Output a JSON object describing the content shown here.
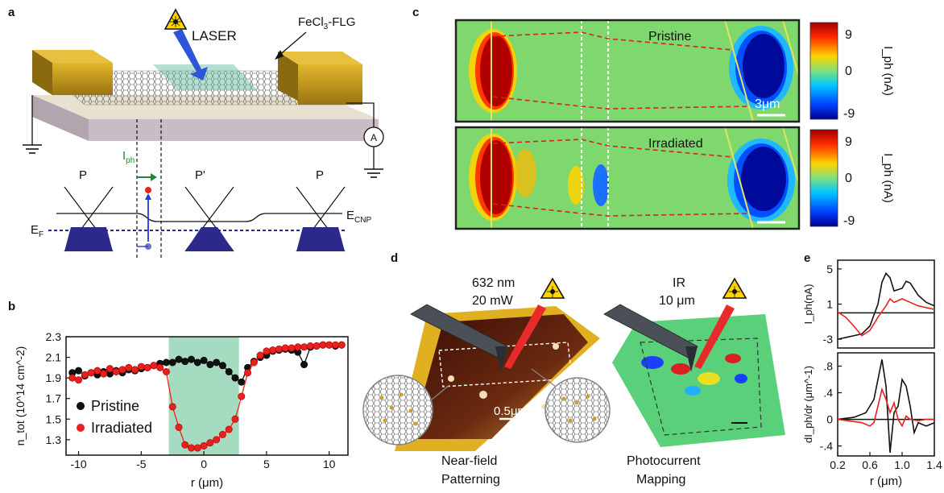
{
  "panel_a": {
    "letter": "a",
    "laser_label": "LASER",
    "material_label": "FeCl",
    "material_sub": "3",
    "material_suffix": "-FLG",
    "meter_label": "A",
    "iph_label": "I",
    "iph_sub": "ph",
    "region_left": "P",
    "region_middle": "P'",
    "region_right": "P",
    "ecnp_label": "E",
    "ecnp_sub": "CNP",
    "ef_label": "E",
    "ef_sub": "F"
  },
  "panel_b": {
    "letter": "b",
    "chart_data": {
      "type": "scatter",
      "xlabel": "r (μm)",
      "ylabel": "n_tot (10^14 cm^-2)",
      "xlim": [
        -11,
        11.5
      ],
      "ylim": [
        1.15,
        2.3
      ],
      "xticks": [
        "-10",
        "-5",
        "0",
        "5",
        "10"
      ],
      "yticks": [
        "2.3",
        "2.1",
        "1.9",
        "1.7",
        "1.5",
        "1.3"
      ],
      "highlight_band": [
        -2.8,
        2.8
      ],
      "legend_position": "bottom-left",
      "series": [
        {
          "name": "Pristine",
          "color": "#111111",
          "x": [
            -10.5,
            -10,
            -9.5,
            -9,
            -8.5,
            -8,
            -7.5,
            -7,
            -6.5,
            -6,
            -5.5,
            -5,
            -4.5,
            -4,
            -3.5,
            -3,
            -2.5,
            -2,
            -1.5,
            -1,
            -0.5,
            0,
            0.5,
            1,
            1.5,
            2,
            2.5,
            3,
            3.5,
            4,
            4.5,
            5,
            5.5,
            6,
            6.5,
            7,
            7.5,
            8,
            8.5,
            9,
            9.5,
            10,
            10.5,
            11
          ],
          "y": [
            1.95,
            1.97,
            1.92,
            1.95,
            1.93,
            1.96,
            1.94,
            1.97,
            1.95,
            1.98,
            1.97,
            1.99,
            2.0,
            2.02,
            2.04,
            2.05,
            2.05,
            2.08,
            2.06,
            2.08,
            2.05,
            2.07,
            2.03,
            2.05,
            2.02,
            1.96,
            1.9,
            1.86,
            2.0,
            2.06,
            2.1,
            2.12,
            2.16,
            2.17,
            2.18,
            2.17,
            2.15,
            2.03,
            2.2,
            2.21,
            2.22,
            2.22,
            2.21,
            2.22
          ]
        },
        {
          "name": "Irradiated",
          "color": "#e8211f",
          "x": [
            -10.5,
            -10,
            -9.5,
            -9,
            -8.5,
            -8,
            -7.5,
            -7,
            -6.5,
            -6,
            -5.5,
            -5,
            -4.5,
            -4,
            -3.5,
            -3,
            -2.5,
            -2,
            -1.5,
            -1,
            -0.5,
            0,
            0.5,
            1,
            1.5,
            2,
            2.5,
            3,
            3.5,
            4,
            4.5,
            5,
            5.5,
            6,
            6.5,
            7,
            7.5,
            8,
            8.5,
            9,
            9.5,
            10,
            10.5,
            11
          ],
          "y": [
            1.9,
            1.88,
            1.93,
            1.95,
            1.97,
            1.94,
            1.99,
            1.96,
            1.98,
            2.0,
            1.98,
            2.01,
            2.0,
            2.02,
            2.0,
            1.96,
            1.62,
            1.42,
            1.25,
            1.22,
            1.22,
            1.24,
            1.27,
            1.3,
            1.35,
            1.4,
            1.5,
            1.72,
            1.95,
            2.05,
            2.12,
            2.16,
            2.17,
            2.18,
            2.19,
            2.19,
            2.2,
            2.2,
            2.21,
            2.21,
            2.22,
            2.22,
            2.22,
            2.22
          ]
        }
      ]
    }
  },
  "panel_c": {
    "letter": "c",
    "top_label": "Pristine",
    "bottom_label": "Irradiated",
    "scale_bar": "3μm",
    "colorbar_ticks": [
      "9",
      "0",
      "-9"
    ],
    "colorbar_label": "I_ph (nA)"
  },
  "panel_d": {
    "letter": "d",
    "left_laser_line1": "632 nm",
    "left_laser_line2": "20 mW",
    "right_laser_line1": "IR",
    "right_laser_line2": "10 μm",
    "scale_bar": "0.5μm",
    "left_caption_line1": "Near-field",
    "left_caption_line2": "Patterning",
    "right_caption_line1": "Photocurrent",
    "right_caption_line2": "Mapping"
  },
  "panel_e": {
    "letter": "e",
    "xlabel": "r (μm)",
    "xticks": [
      "0.2",
      "0.6",
      "1.0",
      "1.4"
    ],
    "chart_data": [
      {
        "type": "line",
        "ylabel": "I_ph(nA)",
        "ylim": [
          -4,
          6
        ],
        "yticks": [
          "5",
          "1",
          "-3"
        ],
        "series": [
          {
            "name": "",
            "color": "#111111",
            "x": [
              0.2,
              0.3,
              0.4,
              0.5,
              0.6,
              0.7,
              0.75,
              0.8,
              0.85,
              0.9,
              1.0,
              1.05,
              1.1,
              1.2,
              1.3,
              1.4
            ],
            "y": [
              -3.0,
              -2.8,
              -2.6,
              -2.4,
              -1.5,
              1.0,
              3.5,
              4.5,
              4.0,
              2.5,
              2.8,
              3.6,
              3.4,
              2.0,
              1.2,
              0.8
            ]
          },
          {
            "name": "",
            "color": "#e8211f",
            "x": [
              0.2,
              0.3,
              0.4,
              0.5,
              0.6,
              0.7,
              0.8,
              0.85,
              0.9,
              1.0,
              1.1,
              1.2,
              1.3,
              1.4
            ],
            "y": [
              0.1,
              -0.5,
              -1.5,
              -2.6,
              -2.0,
              -0.5,
              0.8,
              1.6,
              1.2,
              1.6,
              1.2,
              0.8,
              0.6,
              0.4
            ]
          }
        ]
      },
      {
        "type": "line",
        "ylabel": "dI_ph/dr (μm^-1)",
        "ylim": [
          -0.55,
          1.0
        ],
        "yticks": [
          ".8",
          ".4",
          "0",
          "-.4"
        ],
        "series": [
          {
            "name": "",
            "color": "#111111",
            "x": [
              0.2,
              0.4,
              0.55,
              0.65,
              0.7,
              0.75,
              0.8,
              0.85,
              0.9,
              0.95,
              1.0,
              1.05,
              1.1,
              1.15,
              1.2,
              1.3,
              1.4
            ],
            "y": [
              0.0,
              0.03,
              0.1,
              0.3,
              0.6,
              0.9,
              0.5,
              -0.5,
              0.1,
              0.2,
              0.6,
              0.5,
              0.2,
              -0.2,
              -0.05,
              -0.1,
              -0.05
            ]
          },
          {
            "name": "",
            "color": "#e8211f",
            "x": [
              0.2,
              0.5,
              0.6,
              0.65,
              0.7,
              0.75,
              0.8,
              0.85,
              0.9,
              0.95,
              1.0,
              1.05,
              1.1,
              1.2,
              1.3,
              1.4
            ],
            "y": [
              0.0,
              -0.05,
              -0.1,
              -0.05,
              0.2,
              0.45,
              0.3,
              0.1,
              0.25,
              0.0,
              -0.1,
              0.05,
              0.0,
              -0.02,
              0.0,
              0.0
            ]
          }
        ]
      }
    ]
  }
}
